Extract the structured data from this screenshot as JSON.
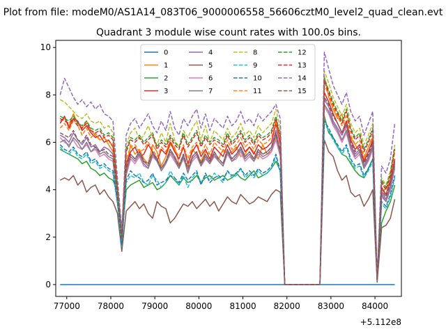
{
  "suptitle": "Plot from file: modeM0/AS1A14_083T06_9000006558_56606cztM0_level2_quad_clean.evt",
  "chart_data": {
    "type": "line",
    "title": "Quadrant 3 module wise count rates with 100.0s bins.",
    "xlabel": "",
    "ylabel": "",
    "x_offset_label": "+5.112e8",
    "xlim": [
      76750,
      84600
    ],
    "ylim": [
      -0.5,
      10.3
    ],
    "xticks": [
      77000,
      78000,
      79000,
      80000,
      81000,
      82000,
      83000,
      84000
    ],
    "yticks": [
      0,
      2,
      4,
      6,
      8,
      10
    ],
    "legend_position": "top-center",
    "segments": [
      {
        "name": "segment-1",
        "x_start": 76850,
        "x_end": 81850
      },
      {
        "name": "segment-2",
        "x_start": 82850,
        "x_end": 84450
      }
    ],
    "series": [
      {
        "name": "0",
        "color": "#1f77b4",
        "dashed": false,
        "base": 0,
        "seg1": [
          0,
          0,
          0,
          0,
          0,
          0,
          0,
          0,
          0,
          0,
          0,
          0,
          0,
          0,
          0,
          0,
          0,
          0,
          0,
          0,
          0,
          0,
          0,
          0,
          0,
          0,
          0,
          0,
          0,
          0,
          0,
          0,
          0,
          0,
          0,
          0,
          0,
          0,
          0,
          0,
          0,
          0,
          0,
          0,
          0,
          0,
          0,
          0,
          0,
          0,
          0
        ],
        "seg2": [
          0,
          0,
          0,
          0,
          0,
          0,
          0,
          0,
          0,
          0,
          0,
          0,
          0,
          0,
          0,
          0,
          0
        ]
      },
      {
        "name": "1",
        "color": "#ff7f0e",
        "dashed": false,
        "base": 6.2,
        "seg1": [
          6.9,
          7.0,
          6.7,
          7.2,
          6.8,
          6.6,
          6.9,
          6.5,
          6.3,
          6.1,
          6.2,
          5.9,
          5.6,
          3.8,
          2.1,
          4.9,
          5.9,
          5.5,
          5.7,
          5.3,
          5.1,
          5.9,
          5.6,
          5.0,
          5.4,
          5.9,
          5.8,
          5.1,
          5.3,
          5.0,
          5.7,
          5.5,
          5.2,
          5.6,
          5.5,
          5.4,
          5.3,
          5.7,
          5.5,
          5.6,
          5.8,
          5.4,
          5.5,
          5.8,
          5.6,
          5.3,
          5.9,
          5.5,
          5.6,
          6.2,
          5.7
        ],
        "seg2": [
          8.8,
          7.9,
          7.4,
          7.0,
          7.2,
          6.4,
          6.2,
          5.9,
          5.6,
          5.3,
          5.8,
          6.2,
          0.3,
          3.8,
          4.1,
          4.3,
          5.1
        ]
      },
      {
        "name": "2",
        "color": "#2ca02c",
        "dashed": false,
        "base": 4.6,
        "seg1": [
          5.7,
          5.6,
          5.5,
          5.4,
          5.3,
          5.1,
          5.2,
          4.9,
          4.8,
          4.6,
          4.7,
          4.5,
          4.4,
          3.9,
          2.0,
          4.0,
          4.2,
          4.3,
          4.4,
          4.1,
          4.2,
          4.3,
          4.0,
          4.1,
          4.3,
          4.6,
          4.4,
          4.2,
          4.5,
          4.3,
          4.4,
          4.6,
          4.3,
          4.5,
          4.6,
          4.4,
          4.5,
          4.6,
          4.4,
          4.5,
          4.7,
          4.5,
          4.4,
          4.6,
          4.8,
          4.5,
          4.6,
          4.7,
          4.9,
          5.2,
          4.8
        ],
        "seg2": [
          7.1,
          6.4,
          6.2,
          5.8,
          5.5,
          5.4,
          5.1,
          4.8,
          4.6,
          4.5,
          4.9,
          5.3,
          0.2,
          2.6,
          3.1,
          3.5,
          4.2
        ]
      },
      {
        "name": "3",
        "color": "#d62728",
        "dashed": false,
        "base": 6.1,
        "seg1": [
          6.8,
          7.1,
          6.6,
          7.0,
          6.9,
          6.5,
          6.7,
          6.4,
          6.2,
          6.3,
          6.0,
          6.1,
          5.8,
          3.9,
          1.7,
          5.1,
          5.6,
          5.8,
          5.4,
          5.5,
          5.9,
          5.6,
          5.2,
          5.7,
          5.5,
          6.0,
          5.6,
          5.3,
          5.8,
          5.1,
          5.6,
          5.9,
          5.4,
          5.7,
          5.3,
          5.8,
          5.6,
          5.4,
          5.9,
          5.5,
          5.7,
          6.0,
          5.6,
          5.8,
          5.5,
          5.9,
          5.7,
          5.8,
          6.0,
          6.8,
          5.9
        ],
        "seg2": [
          8.1,
          7.7,
          7.2,
          6.8,
          6.4,
          6.9,
          6.1,
          5.7,
          5.9,
          5.2,
          5.6,
          6.1,
          0.2,
          4.1,
          3.8,
          4.4,
          5.3
        ]
      },
      {
        "name": "4",
        "color": "#9467bd",
        "dashed": false,
        "base": 5.8,
        "seg1": [
          6.3,
          6.2,
          6.0,
          6.4,
          6.1,
          5.9,
          6.2,
          5.8,
          5.9,
          5.6,
          5.8,
          5.7,
          5.5,
          3.7,
          1.9,
          4.8,
          5.5,
          5.3,
          5.6,
          5.2,
          5.0,
          5.6,
          5.3,
          4.9,
          5.2,
          5.7,
          5.4,
          5.0,
          5.5,
          4.8,
          5.4,
          5.6,
          5.1,
          5.5,
          5.2,
          5.6,
          5.3,
          5.1,
          5.7,
          5.3,
          5.5,
          5.8,
          5.4,
          5.6,
          5.3,
          5.7,
          5.5,
          5.6,
          5.8,
          6.5,
          5.6
        ],
        "seg2": [
          7.8,
          7.5,
          6.9,
          6.6,
          6.3,
          6.7,
          5.9,
          5.5,
          5.7,
          5.0,
          5.4,
          5.9,
          0.2,
          3.9,
          3.6,
          4.2,
          5.1
        ]
      },
      {
        "name": "5",
        "color": "#8c564b",
        "dashed": false,
        "base": 3.5,
        "seg1": [
          4.4,
          4.5,
          4.4,
          4.6,
          4.2,
          4.4,
          3.9,
          4.1,
          4.2,
          3.8,
          4.0,
          3.7,
          3.5,
          3.0,
          1.4,
          3.1,
          3.3,
          3.5,
          3.2,
          3.4,
          3.0,
          2.8,
          3.5,
          3.3,
          3.2,
          2.6,
          2.8,
          3.1,
          3.4,
          3.3,
          3.5,
          3.2,
          3.4,
          3.6,
          3.3,
          3.5,
          3.1,
          3.4,
          3.7,
          3.5,
          3.4,
          3.8,
          3.6,
          3.4,
          3.5,
          3.7,
          3.6,
          3.5,
          3.8,
          4.0,
          3.9
        ],
        "seg2": [
          6.1,
          5.6,
          5.4,
          4.8,
          4.4,
          4.6,
          3.9,
          3.7,
          3.8,
          3.3,
          3.6,
          4.0,
          0.1,
          2.4,
          2.5,
          2.8,
          3.6
        ]
      },
      {
        "name": "6",
        "color": "#e377c2",
        "dashed": false,
        "base": 5.5,
        "seg1": [
          6.2,
          6.0,
          5.9,
          6.1,
          5.8,
          5.7,
          5.9,
          5.6,
          5.7,
          5.4,
          5.5,
          5.3,
          5.2,
          3.6,
          1.8,
          4.6,
          5.3,
          5.1,
          5.4,
          5.0,
          4.9,
          5.4,
          5.2,
          4.8,
          5.1,
          5.5,
          5.2,
          4.9,
          5.3,
          4.8,
          5.2,
          5.4,
          5.0,
          5.3,
          5.1,
          5.4,
          5.2,
          5.0,
          5.5,
          5.2,
          5.3,
          5.6,
          5.2,
          5.4,
          5.2,
          5.5,
          5.3,
          5.4,
          5.6,
          6.1,
          5.4
        ],
        "seg2": [
          7.5,
          7.2,
          6.7,
          6.4,
          6.0,
          6.4,
          5.7,
          5.3,
          5.5,
          4.9,
          5.2,
          5.7,
          0.2,
          3.7,
          3.5,
          4.0,
          4.9
        ]
      },
      {
        "name": "7",
        "color": "#7f7f7f",
        "dashed": false,
        "base": 5.6,
        "seg1": [
          6.0,
          6.1,
          5.8,
          6.2,
          6.0,
          5.7,
          6.0,
          5.6,
          5.8,
          5.5,
          5.6,
          5.4,
          5.3,
          3.6,
          1.8,
          4.7,
          5.4,
          5.2,
          5.5,
          5.1,
          4.9,
          5.5,
          5.2,
          4.8,
          5.1,
          5.6,
          5.3,
          4.9,
          5.4,
          4.7,
          5.3,
          5.5,
          5.0,
          5.4,
          5.1,
          5.5,
          5.2,
          5.0,
          5.6,
          5.2,
          5.4,
          5.7,
          5.3,
          5.5,
          5.2,
          5.6,
          5.4,
          5.5,
          5.7,
          6.3,
          5.5
        ],
        "seg2": [
          7.6,
          7.3,
          6.8,
          6.5,
          6.1,
          6.5,
          5.8,
          5.4,
          5.6,
          4.9,
          5.3,
          5.8,
          0.2,
          3.8,
          3.5,
          4.1,
          5.0
        ]
      },
      {
        "name": "8",
        "color": "#bcbd22",
        "dashed": true,
        "base": 6.5,
        "seg1": [
          7.8,
          7.7,
          7.5,
          7.3,
          7.1,
          7.0,
          7.2,
          6.9,
          6.8,
          6.9,
          6.6,
          6.7,
          6.4,
          4.2,
          2.2,
          5.9,
          6.4,
          6.6,
          6.1,
          6.3,
          6.7,
          6.2,
          5.9,
          6.4,
          6.0,
          6.8,
          6.1,
          5.8,
          6.5,
          6.2,
          6.6,
          6.9,
          6.1,
          6.7,
          6.0,
          6.5,
          6.3,
          6.1,
          6.6,
          6.2,
          6.4,
          6.8,
          6.3,
          6.5,
          6.2,
          6.7,
          6.4,
          6.6,
          6.8,
          7.4,
          6.6
        ],
        "seg2": [
          9.0,
          8.5,
          7.9,
          7.5,
          7.1,
          7.6,
          6.8,
          6.4,
          6.6,
          5.9,
          6.3,
          6.8,
          0.2,
          4.5,
          4.2,
          4.8,
          5.9
        ]
      },
      {
        "name": "9",
        "color": "#17becf",
        "dashed": true,
        "base": 5.0,
        "seg1": [
          5.8,
          5.6,
          5.5,
          5.7,
          5.4,
          5.3,
          5.5,
          5.1,
          5.2,
          4.9,
          5.0,
          4.8,
          4.7,
          3.4,
          1.6,
          4.3,
          4.6,
          4.5,
          4.7,
          4.3,
          4.2,
          4.6,
          4.4,
          4.1,
          4.3,
          4.8,
          4.5,
          4.2,
          4.6,
          4.1,
          4.5,
          4.7,
          4.3,
          4.6,
          4.4,
          4.7,
          4.5,
          4.3,
          4.8,
          4.5,
          4.6,
          4.9,
          4.5,
          4.7,
          4.5,
          4.8,
          4.6,
          4.7,
          4.9,
          5.4,
          4.7
        ],
        "seg2": [
          6.8,
          6.5,
          6.1,
          5.8,
          5.5,
          5.8,
          5.2,
          4.9,
          5.0,
          4.5,
          4.8,
          5.2,
          0.2,
          3.4,
          3.2,
          3.7,
          4.5
        ]
      },
      {
        "name": "10",
        "color": "#1f77b4",
        "dashed": true,
        "base": 4.9,
        "seg1": [
          5.9,
          5.7,
          5.6,
          5.8,
          5.5,
          5.4,
          5.6,
          5.2,
          5.3,
          5.0,
          5.1,
          4.9,
          4.8,
          3.5,
          1.7,
          4.4,
          4.8,
          4.6,
          4.5,
          4.3,
          4.4,
          4.7,
          4.2,
          4.3,
          4.4,
          4.6,
          4.5,
          4.3,
          4.7,
          4.4,
          4.6,
          4.8,
          4.2,
          4.7,
          4.3,
          4.5,
          4.6,
          4.4,
          4.8,
          4.6,
          4.7,
          4.9,
          4.6,
          4.8,
          4.6,
          4.9,
          4.7,
          4.8,
          5.0,
          5.5,
          4.8
        ],
        "seg2": [
          6.9,
          6.6,
          6.2,
          5.9,
          5.6,
          5.9,
          5.3,
          5.0,
          5.1,
          4.6,
          4.9,
          5.3,
          0.2,
          3.5,
          3.3,
          3.8,
          4.6
        ]
      },
      {
        "name": "11",
        "color": "#ff7f0e",
        "dashed": true,
        "base": 6.0,
        "seg1": [
          6.6,
          6.8,
          6.5,
          6.9,
          6.7,
          6.3,
          6.6,
          6.2,
          6.4,
          6.1,
          6.2,
          6.0,
          5.9,
          3.9,
          2.0,
          5.3,
          5.8,
          5.9,
          5.6,
          5.7,
          6.0,
          5.7,
          5.4,
          5.8,
          5.6,
          6.1,
          5.7,
          5.4,
          5.9,
          5.3,
          5.8,
          6.0,
          5.5,
          5.9,
          5.5,
          6.0,
          5.8,
          5.6,
          6.1,
          5.7,
          5.9,
          6.2,
          5.8,
          6.0,
          5.7,
          6.1,
          5.9,
          6.0,
          6.2,
          6.9,
          6.1
        ],
        "seg2": [
          8.4,
          8.0,
          7.5,
          7.1,
          6.7,
          7.1,
          6.3,
          5.9,
          6.1,
          5.4,
          5.8,
          6.3,
          0.2,
          4.3,
          4.0,
          4.6,
          5.6
        ]
      },
      {
        "name": "12",
        "color": "#2ca02c",
        "dashed": true,
        "base": 6.3,
        "seg1": [
          7.1,
          7.0,
          6.9,
          7.1,
          6.8,
          6.7,
          6.9,
          6.6,
          6.5,
          6.6,
          6.3,
          6.4,
          6.2,
          4.1,
          2.1,
          5.7,
          6.2,
          6.1,
          6.3,
          6.0,
          6.2,
          6.4,
          5.8,
          6.1,
          5.9,
          6.3,
          6.0,
          5.8,
          6.4,
          5.9,
          6.2,
          6.5,
          5.9,
          6.3,
          6.0,
          6.2,
          6.1,
          5.9,
          6.4,
          6.0,
          6.2,
          6.5,
          6.1,
          6.3,
          6.0,
          6.4,
          6.2,
          6.3,
          6.5,
          7.1,
          6.3
        ],
        "seg2": [
          8.7,
          8.2,
          7.7,
          7.3,
          6.9,
          7.4,
          6.6,
          6.2,
          6.4,
          5.7,
          6.1,
          6.6,
          0.2,
          4.4,
          4.1,
          4.7,
          5.8
        ]
      },
      {
        "name": "13",
        "color": "#d62728",
        "dashed": true,
        "base": 6.2,
        "seg1": [
          7.0,
          6.9,
          6.8,
          7.0,
          6.7,
          6.6,
          6.8,
          6.5,
          6.4,
          6.5,
          6.2,
          6.3,
          6.1,
          4.0,
          2.0,
          5.6,
          6.1,
          6.0,
          6.2,
          5.9,
          6.1,
          6.3,
          5.7,
          6.0,
          5.8,
          6.2,
          5.9,
          5.7,
          6.3,
          5.8,
          6.1,
          6.4,
          5.8,
          6.2,
          5.9,
          6.1,
          6.0,
          5.8,
          6.3,
          5.9,
          6.1,
          6.4,
          6.0,
          6.2,
          5.9,
          6.3,
          6.1,
          6.2,
          6.4,
          7.0,
          6.2
        ],
        "seg2": [
          8.6,
          8.1,
          7.6,
          7.2,
          6.8,
          7.3,
          6.5,
          6.1,
          6.3,
          5.6,
          6.0,
          6.5,
          0.2,
          4.3,
          4.0,
          4.6,
          5.7
        ]
      },
      {
        "name": "14",
        "color": "#9467bd",
        "dashed": true,
        "base": 7.0,
        "seg1": [
          8.0,
          8.7,
          8.3,
          7.9,
          7.6,
          7.8,
          7.5,
          7.7,
          7.4,
          7.6,
          7.2,
          7.1,
          6.9,
          4.5,
          2.3,
          6.3,
          6.8,
          7.0,
          6.6,
          6.9,
          7.2,
          6.7,
          6.4,
          6.9,
          6.5,
          7.3,
          6.6,
          6.3,
          7.0,
          6.7,
          7.1,
          7.4,
          6.6,
          7.2,
          6.5,
          7.0,
          6.8,
          6.6,
          7.1,
          6.7,
          6.9,
          7.3,
          6.8,
          7.0,
          6.7,
          7.2,
          6.9,
          7.1,
          7.3,
          7.6,
          7.0
        ],
        "seg2": [
          9.8,
          9.1,
          8.4,
          8.0,
          7.6,
          8.1,
          7.3,
          6.9,
          7.1,
          6.3,
          6.8,
          7.3,
          0.2,
          5.0,
          4.7,
          5.3,
          6.8
        ]
      },
      {
        "name": "15",
        "color": "#8c564b",
        "dashed": true,
        "base": 5.7,
        "seg1": [
          6.4,
          6.3,
          6.2,
          6.5,
          6.1,
          6.0,
          6.3,
          5.9,
          5.8,
          5.6,
          5.7,
          5.5,
          5.4,
          3.8,
          1.9,
          4.9,
          5.5,
          5.3,
          5.6,
          5.2,
          5.1,
          5.6,
          5.3,
          4.9,
          5.2,
          5.7,
          5.4,
          5.0,
          5.5,
          4.9,
          5.4,
          5.6,
          5.1,
          5.5,
          5.2,
          5.6,
          5.3,
          5.1,
          5.7,
          5.3,
          5.5,
          5.8,
          5.4,
          5.6,
          5.3,
          5.7,
          5.5,
          5.6,
          5.8,
          6.4,
          5.6
        ],
        "seg2": [
          7.9,
          7.6,
          7.1,
          6.8,
          6.4,
          6.8,
          6.0,
          5.6,
          5.8,
          5.1,
          5.5,
          6.0,
          0.2,
          4.0,
          3.7,
          4.3,
          5.2
        ]
      }
    ]
  }
}
